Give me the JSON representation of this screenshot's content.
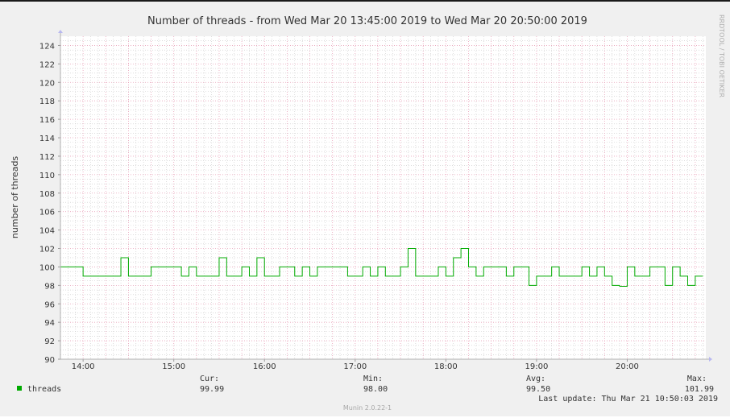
{
  "chart_data": {
    "type": "line",
    "title": "Number of threads - from Wed Mar 20 13:45:00 2019 to Wed Mar 20 20:50:00 2019",
    "ylabel": "number of threads",
    "xlabel": "",
    "watermark": "RRDTOOL / TOBI OETIKER",
    "ylim": [
      90,
      125
    ],
    "xlim_minutes": [
      825,
      1252
    ],
    "yticks": [
      90,
      92,
      94,
      96,
      98,
      100,
      102,
      104,
      106,
      108,
      110,
      112,
      114,
      116,
      118,
      120,
      122,
      124
    ],
    "xticks": [
      {
        "label": "14:00",
        "minute": 840
      },
      {
        "label": "15:00",
        "minute": 900
      },
      {
        "label": "16:00",
        "minute": 960
      },
      {
        "label": "17:00",
        "minute": 1020
      },
      {
        "label": "18:00",
        "minute": 1080
      },
      {
        "label": "19:00",
        "minute": 1140
      },
      {
        "label": "20:00",
        "minute": 1200
      }
    ],
    "grid": true,
    "colors": {
      "series": "#00aa00",
      "major_grid": "#e8a0b8",
      "minor_grid": "#c8c8c8",
      "plot_bg": "#ffffff",
      "canvas_bg": "#f0f0f0"
    },
    "series": [
      {
        "name": "threads",
        "steps": [
          {
            "start": 825,
            "end": 840,
            "value": 100
          },
          {
            "start": 840,
            "end": 865,
            "value": 99
          },
          {
            "start": 865,
            "end": 870,
            "value": 101
          },
          {
            "start": 870,
            "end": 885,
            "value": 99
          },
          {
            "start": 885,
            "end": 905,
            "value": 100
          },
          {
            "start": 905,
            "end": 910,
            "value": 99
          },
          {
            "start": 910,
            "end": 915,
            "value": 100
          },
          {
            "start": 915,
            "end": 930,
            "value": 99
          },
          {
            "start": 930,
            "end": 935,
            "value": 101
          },
          {
            "start": 935,
            "end": 945,
            "value": 99
          },
          {
            "start": 945,
            "end": 950,
            "value": 100
          },
          {
            "start": 950,
            "end": 955,
            "value": 99
          },
          {
            "start": 955,
            "end": 960,
            "value": 101
          },
          {
            "start": 960,
            "end": 970,
            "value": 99
          },
          {
            "start": 970,
            "end": 980,
            "value": 100
          },
          {
            "start": 980,
            "end": 985,
            "value": 99
          },
          {
            "start": 985,
            "end": 990,
            "value": 100
          },
          {
            "start": 990,
            "end": 995,
            "value": 99
          },
          {
            "start": 995,
            "end": 1015,
            "value": 100
          },
          {
            "start": 1015,
            "end": 1025,
            "value": 99
          },
          {
            "start": 1025,
            "end": 1030,
            "value": 100
          },
          {
            "start": 1030,
            "end": 1035,
            "value": 99
          },
          {
            "start": 1035,
            "end": 1040,
            "value": 100
          },
          {
            "start": 1040,
            "end": 1050,
            "value": 99
          },
          {
            "start": 1050,
            "end": 1055,
            "value": 100
          },
          {
            "start": 1055,
            "end": 1060,
            "value": 102
          },
          {
            "start": 1060,
            "end": 1075,
            "value": 99
          },
          {
            "start": 1075,
            "end": 1080,
            "value": 100
          },
          {
            "start": 1080,
            "end": 1085,
            "value": 99
          },
          {
            "start": 1085,
            "end": 1090,
            "value": 101
          },
          {
            "start": 1090,
            "end": 1095,
            "value": 102
          },
          {
            "start": 1095,
            "end": 1100,
            "value": 100
          },
          {
            "start": 1100,
            "end": 1105,
            "value": 99
          },
          {
            "start": 1105,
            "end": 1120,
            "value": 100
          },
          {
            "start": 1120,
            "end": 1125,
            "value": 99
          },
          {
            "start": 1125,
            "end": 1135,
            "value": 100
          },
          {
            "start": 1135,
            "end": 1140,
            "value": 98
          },
          {
            "start": 1140,
            "end": 1150,
            "value": 99
          },
          {
            "start": 1150,
            "end": 1155,
            "value": 100
          },
          {
            "start": 1155,
            "end": 1170,
            "value": 99
          },
          {
            "start": 1170,
            "end": 1175,
            "value": 100
          },
          {
            "start": 1175,
            "end": 1180,
            "value": 99
          },
          {
            "start": 1180,
            "end": 1185,
            "value": 100
          },
          {
            "start": 1185,
            "end": 1190,
            "value": 99
          },
          {
            "start": 1190,
            "end": 1195,
            "value": 98
          },
          {
            "start": 1195,
            "end": 1200,
            "value": 97.9
          },
          {
            "start": 1200,
            "end": 1205,
            "value": 100
          },
          {
            "start": 1205,
            "end": 1215,
            "value": 99
          },
          {
            "start": 1215,
            "end": 1225,
            "value": 100
          },
          {
            "start": 1225,
            "end": 1230,
            "value": 98
          },
          {
            "start": 1230,
            "end": 1235,
            "value": 100
          },
          {
            "start": 1235,
            "end": 1240,
            "value": 99
          },
          {
            "start": 1240,
            "end": 1245,
            "value": 98
          },
          {
            "start": 1245,
            "end": 1250,
            "value": 99
          }
        ]
      }
    ]
  },
  "legend": {
    "series_label": "threads",
    "cur_label": "Cur:",
    "cur_value": "99.99",
    "min_label": "Min:",
    "min_value": "98.00",
    "avg_label": "Avg:",
    "avg_value": "99.50",
    "max_label": "Max:",
    "max_value": "101.99",
    "last_update": "Last update:  Thu Mar 21 10:50:03 2019",
    "version": "Munin 2.0.22-1"
  }
}
